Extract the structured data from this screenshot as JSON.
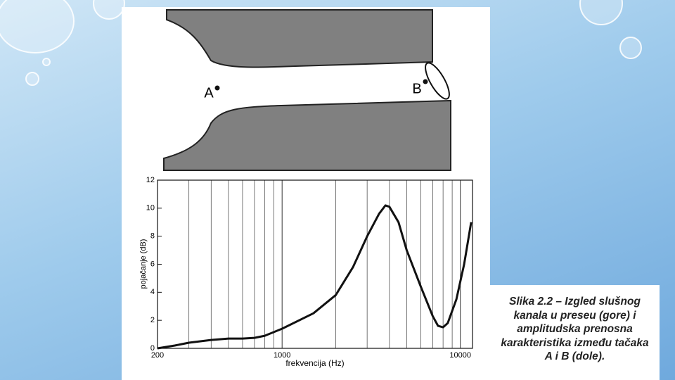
{
  "diagram": {
    "labels": [
      "A",
      "B"
    ]
  },
  "chart_data": {
    "type": "line",
    "x_label": "frekvencija (Hz)",
    "y_label": "pojačanje (dB)",
    "x_scale": "log",
    "xlim": [
      200,
      11700
    ],
    "xticks": [
      200,
      1000,
      10000
    ],
    "x_minor_ticks": [
      300,
      400,
      500,
      600,
      700,
      800,
      900,
      2000,
      3000,
      4000,
      5000,
      6000,
      7000,
      8000,
      9000
    ],
    "ylim": [
      0,
      12
    ],
    "yticks": [
      0,
      2,
      4,
      6,
      8,
      10,
      12
    ],
    "grid": true,
    "series": [
      {
        "color": "#111111",
        "x": [
          200,
          250,
          300,
          400,
          500,
          600,
          700,
          800,
          1000,
          1500,
          2000,
          2500,
          3000,
          3500,
          3800,
          4000,
          4500,
          5000,
          6000,
          7000,
          7500,
          8000,
          8500,
          9500,
          10500,
          11500
        ],
        "values": [
          0,
          0.2,
          0.4,
          0.6,
          0.7,
          0.7,
          0.75,
          0.9,
          1.4,
          2.5,
          3.8,
          5.8,
          8,
          9.6,
          10.2,
          10.1,
          9,
          7,
          4.4,
          2.3,
          1.6,
          1.5,
          1.8,
          3.5,
          6,
          9
        ]
      }
    ]
  },
  "caption": {
    "lines": [
      "Slika 2.2 – Izgled slušnog",
      "kanala u preseu (gore) i",
      "amplitudska prenosna",
      "karakteristika između tačaka",
      "A i B (dole)."
    ]
  }
}
